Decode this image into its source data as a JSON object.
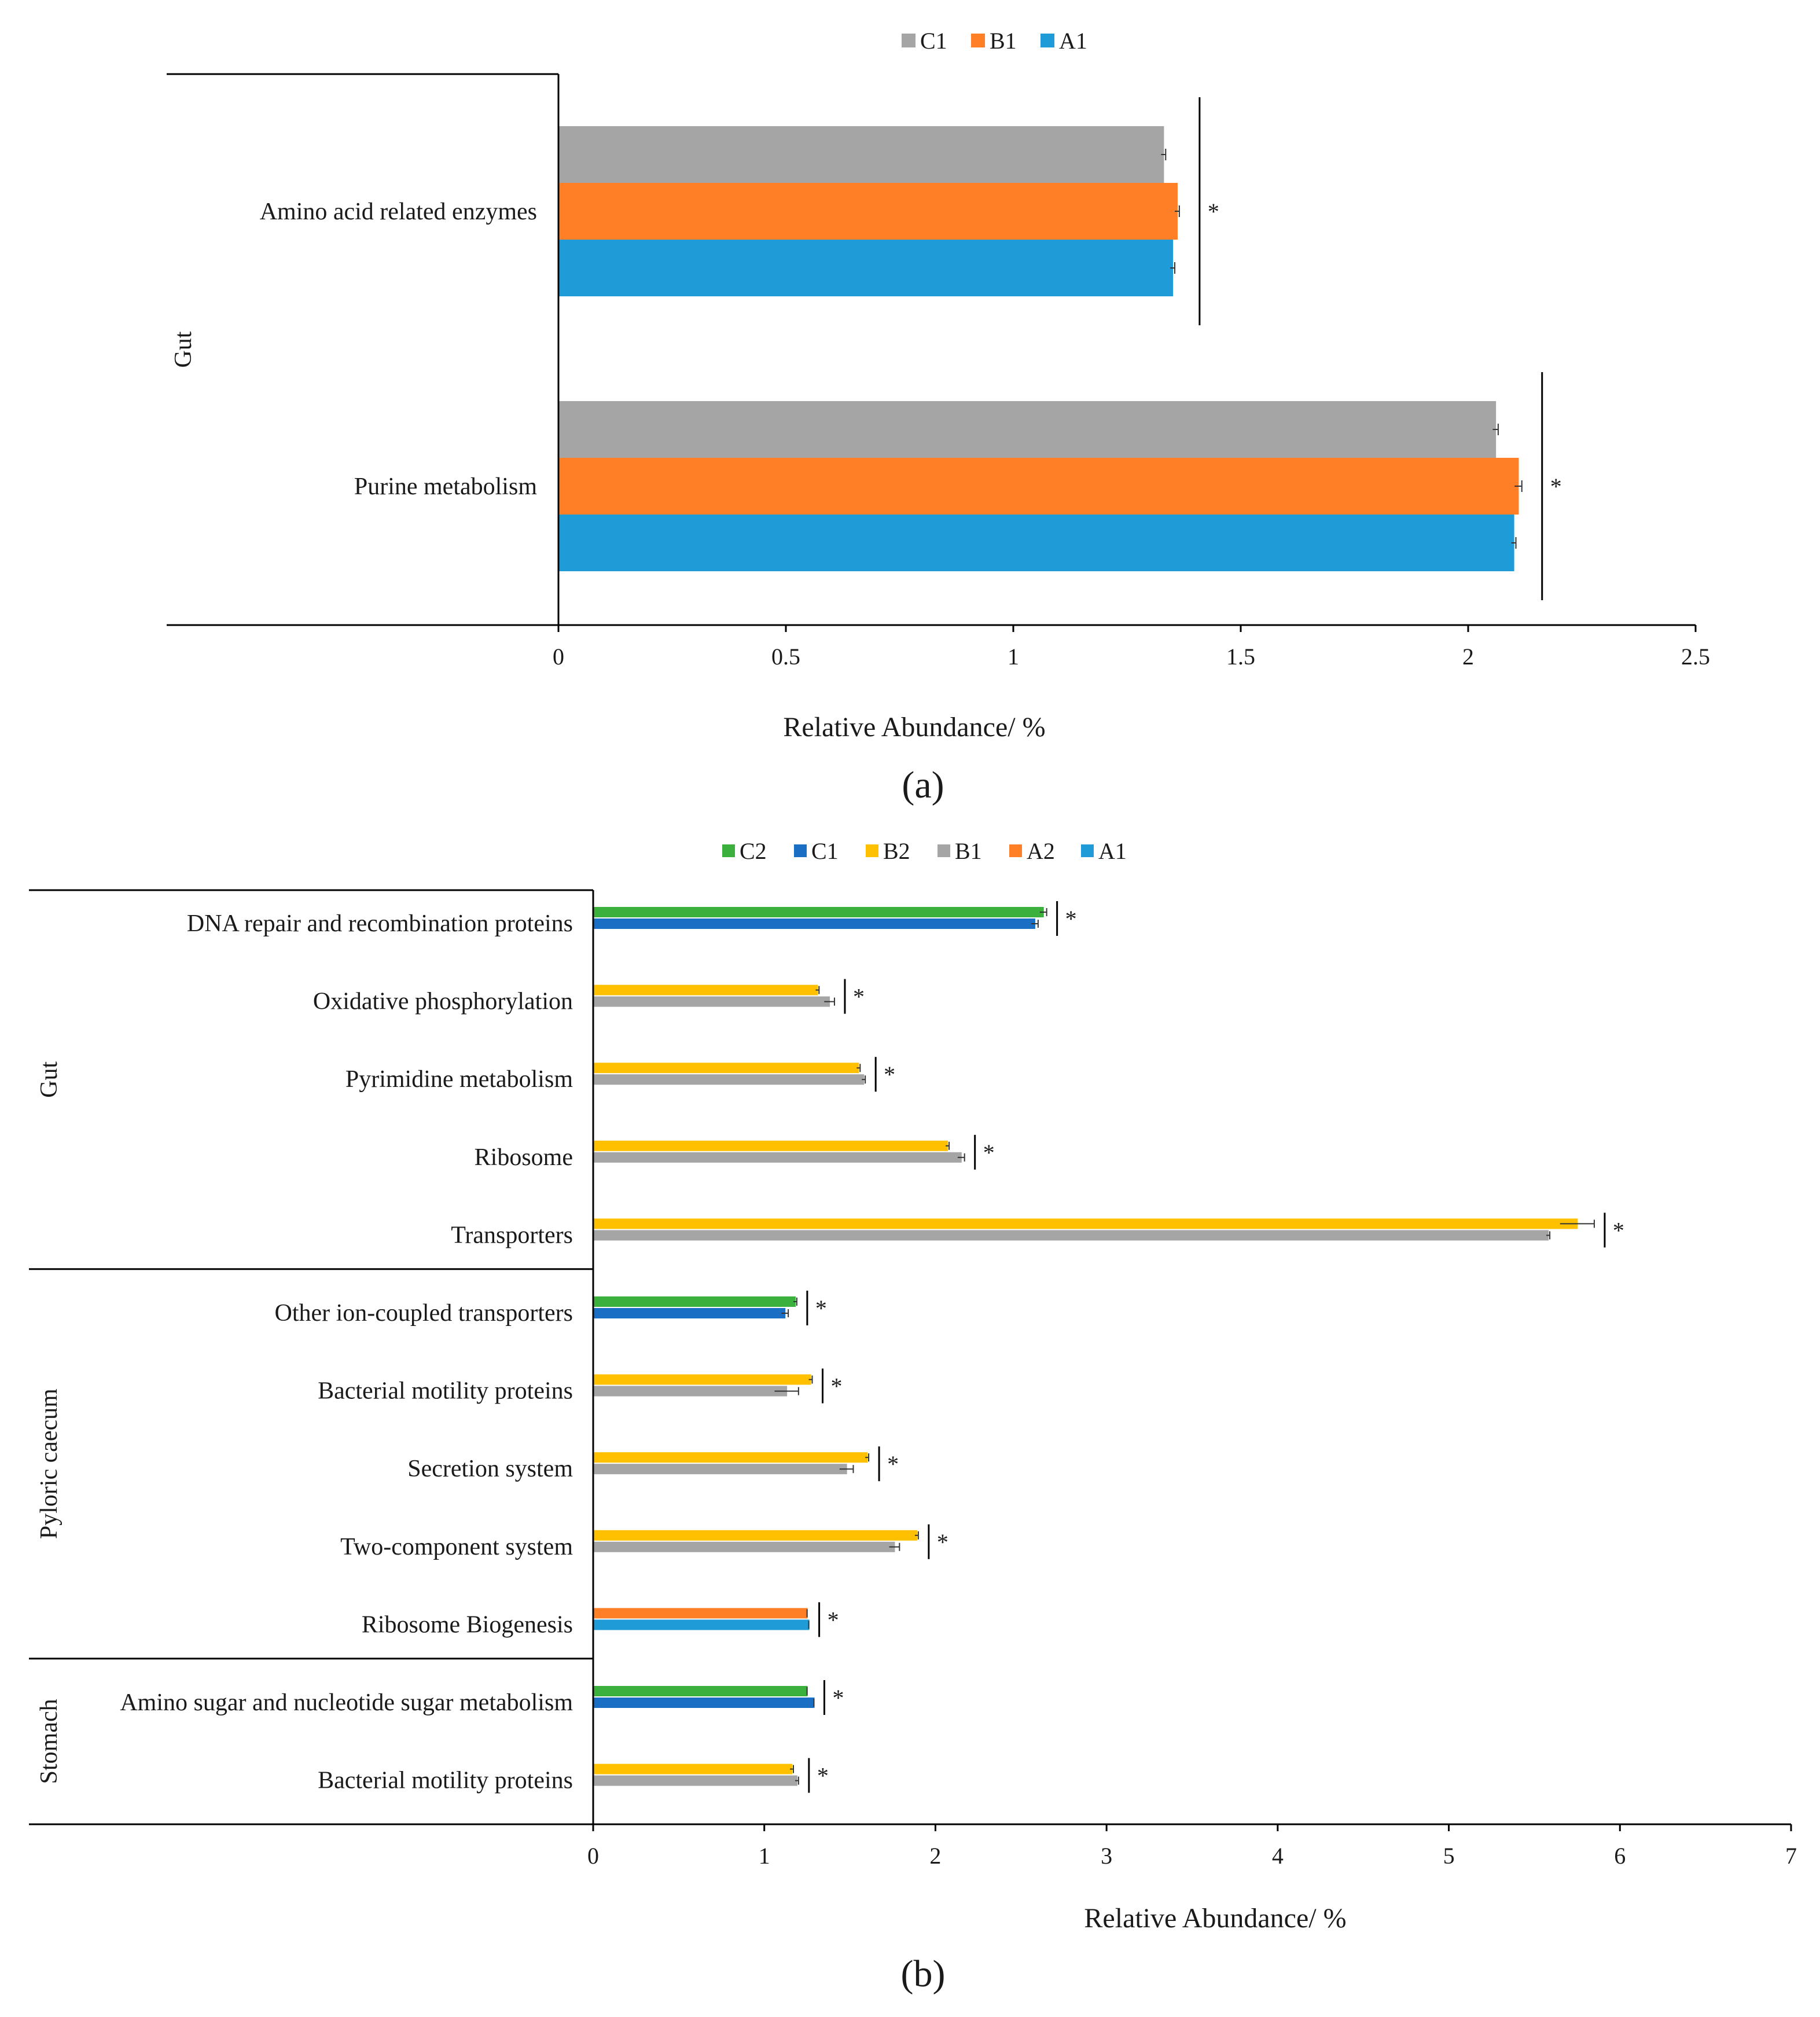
{
  "chart_data": [
    {
      "type": "bar",
      "orientation": "horizontal",
      "panel_label": "(a)",
      "xlabel": "Relative  Abundance/  %",
      "xlim": [
        0,
        2.5
      ],
      "xticks": [
        0,
        0.5,
        1,
        1.5,
        2,
        2.5
      ],
      "xtick_labels": [
        "0",
        "0.5",
        "1",
        "1.5",
        "2",
        "2.5"
      ],
      "legend": [
        {
          "name": "C1",
          "color": "#a5a5a5"
        },
        {
          "name": "B1",
          "color": "#ff7f27"
        },
        {
          "name": "A1",
          "color": "#1f9bd7"
        }
      ],
      "groups": [
        {
          "name": "Gut",
          "categories": [
            "Amino acid related enzymes",
            "Purine metabolism"
          ]
        }
      ],
      "categories": [
        {
          "name": "Amino acid related enzymes",
          "significance": "*",
          "bars": [
            {
              "series": "C1",
              "value": 1.33,
              "error": 0.005
            },
            {
              "series": "B1",
              "value": 1.36,
              "error": 0.005
            },
            {
              "series": "A1",
              "value": 1.35,
              "error": 0.005
            }
          ]
        },
        {
          "name": "Purine metabolism",
          "significance": "*",
          "bars": [
            {
              "series": "C1",
              "value": 2.06,
              "error": 0.006
            },
            {
              "series": "B1",
              "value": 2.11,
              "error": 0.008
            },
            {
              "series": "A1",
              "value": 2.1,
              "error": 0.005
            }
          ]
        }
      ]
    },
    {
      "type": "bar",
      "orientation": "horizontal",
      "panel_label": "(b)",
      "xlabel": "Relative  Abundance/  %",
      "xlim": [
        0,
        7
      ],
      "xticks": [
        0,
        1,
        2,
        3,
        4,
        5,
        6,
        7
      ],
      "xtick_labels": [
        "0",
        "1",
        "2",
        "3",
        "4",
        "5",
        "6",
        "7"
      ],
      "legend": [
        {
          "name": "C2",
          "color": "#3cb03c"
        },
        {
          "name": "C1",
          "color": "#1a6fc4"
        },
        {
          "name": "B2",
          "color": "#ffc000"
        },
        {
          "name": "B1",
          "color": "#a5a5a5"
        },
        {
          "name": "A2",
          "color": "#ff7f27"
        },
        {
          "name": "A1",
          "color": "#1f9bd7"
        }
      ],
      "groups": [
        {
          "name": "Gut",
          "categories": [
            "DNA repair and recombination proteins",
            "Oxidative phosphorylation",
            "Pyrimidine metabolism",
            "Ribosome",
            "Transporters"
          ]
        },
        {
          "name": "Pyloric caecum",
          "categories": [
            "Other ion-coupled transporters",
            "Bacterial motility proteins",
            "Secretion system",
            "Two-component system",
            "Ribosome Biogenesis"
          ]
        },
        {
          "name": "Stomach",
          "categories": [
            "Amino sugar and nucleotide sugar metabolism",
            "Bacterial motility proteins"
          ]
        }
      ],
      "categories": [
        {
          "name": "DNA repair and recombination proteins",
          "significance": "*",
          "bars": [
            {
              "series": "C2",
              "value": 2.63,
              "error": 0.02
            },
            {
              "series": "C1",
              "value": 2.58,
              "error": 0.02
            }
          ]
        },
        {
          "name": "Oxidative phosphorylation",
          "significance": "*",
          "bars": [
            {
              "series": "B2",
              "value": 1.31,
              "error": 0.01
            },
            {
              "series": "B1",
              "value": 1.38,
              "error": 0.03
            }
          ]
        },
        {
          "name": "Pyrimidine metabolism",
          "significance": "*",
          "bars": [
            {
              "series": "B2",
              "value": 1.55,
              "error": 0.01
            },
            {
              "series": "B1",
              "value": 1.58,
              "error": 0.01
            }
          ]
        },
        {
          "name": "Ribosome",
          "significance": "*",
          "bars": [
            {
              "series": "B2",
              "value": 2.07,
              "error": 0.01
            },
            {
              "series": "B1",
              "value": 2.15,
              "error": 0.02
            }
          ]
        },
        {
          "name": "Transporters",
          "significance": "*",
          "bars": [
            {
              "series": "B2",
              "value": 5.75,
              "error": 0.1
            },
            {
              "series": "B1",
              "value": 5.58,
              "error": 0.01
            }
          ]
        },
        {
          "name": "Other ion-coupled transporters",
          "significance": "*",
          "bars": [
            {
              "series": "C2",
              "value": 1.18,
              "error": 0.01
            },
            {
              "series": "C1",
              "value": 1.12,
              "error": 0.02
            }
          ]
        },
        {
          "name": "Bacterial motility proteins",
          "significance": "*",
          "bars": [
            {
              "series": "B2",
              "value": 1.27,
              "error": 0.01
            },
            {
              "series": "B1",
              "value": 1.13,
              "error": 0.07
            }
          ]
        },
        {
          "name": "Secretion system",
          "significance": "*",
          "bars": [
            {
              "series": "B2",
              "value": 1.6,
              "error": 0.01
            },
            {
              "series": "B1",
              "value": 1.48,
              "error": 0.04
            }
          ]
        },
        {
          "name": "Two-component system",
          "significance": "*",
          "bars": [
            {
              "series": "B2",
              "value": 1.89,
              "error": 0.01
            },
            {
              "series": "B1",
              "value": 1.76,
              "error": 0.03
            }
          ]
        },
        {
          "name": "Ribosome Biogenesis",
          "significance": "*",
          "bars": [
            {
              "series": "A2",
              "value": 1.25,
              "error": 0.0
            },
            {
              "series": "A1",
              "value": 1.26,
              "error": 0.0
            }
          ]
        },
        {
          "name": "Amino sugar and nucleotide sugar metabolism",
          "significance": "*",
          "bars": [
            {
              "series": "C2",
              "value": 1.25,
              "error": 0.0
            },
            {
              "series": "C1",
              "value": 1.29,
              "error": 0.0
            }
          ]
        },
        {
          "name": "Bacterial motility proteins",
          "significance": "*",
          "bars": [
            {
              "series": "B2",
              "value": 1.16,
              "error": 0.01
            },
            {
              "series": "B1",
              "value": 1.19,
              "error": 0.01
            }
          ]
        }
      ]
    }
  ]
}
